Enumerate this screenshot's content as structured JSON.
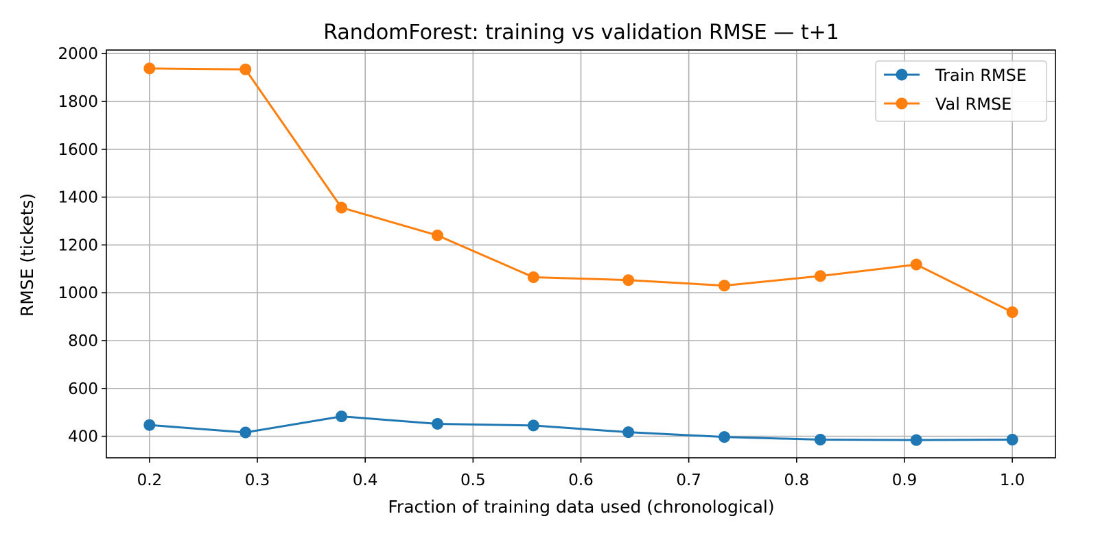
{
  "chart_data": {
    "type": "line",
    "title": "RandomForest: training vs validation RMSE — t+1",
    "xlabel": "Fraction of training data used (chronological)",
    "ylabel": "RMSE (tickets)",
    "x": [
      0.2,
      0.289,
      0.378,
      0.467,
      0.556,
      0.644,
      0.733,
      0.822,
      0.911,
      1.0
    ],
    "xlim": [
      0.16,
      1.04
    ],
    "ylim": [
      310,
      2015
    ],
    "xticks": [
      "0.2",
      "0.3",
      "0.4",
      "0.5",
      "0.6",
      "0.7",
      "0.8",
      "0.9",
      "1.0"
    ],
    "xtick_values": [
      0.2,
      0.3,
      0.4,
      0.5,
      0.6,
      0.7,
      0.8,
      0.9,
      1.0
    ],
    "yticks": [
      "400",
      "600",
      "800",
      "1000",
      "1200",
      "1400",
      "1600",
      "1800",
      "2000"
    ],
    "ytick_values": [
      400,
      600,
      800,
      1000,
      1200,
      1400,
      1600,
      1800,
      2000
    ],
    "grid": true,
    "legend_position": "top-right",
    "series": [
      {
        "name": "Train RMSE",
        "color": "#1f77b4",
        "marker": "circle",
        "values": [
          447,
          416,
          483,
          452,
          445,
          417,
          397,
          386,
          384,
          386
        ]
      },
      {
        "name": "Val RMSE",
        "color": "#ff7f0e",
        "marker": "circle",
        "values": [
          1938,
          1934,
          1356,
          1240,
          1065,
          1053,
          1030,
          1070,
          1118,
          919
        ]
      }
    ]
  }
}
